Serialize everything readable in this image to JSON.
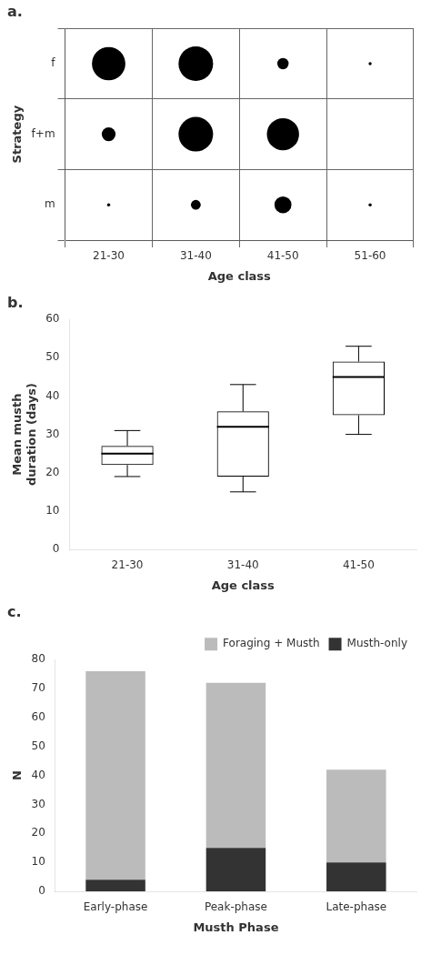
{
  "chart_data": [
    {
      "type": "bubble",
      "title": "a.",
      "xlabel": "Age class",
      "ylabel": "Strategy",
      "categories": [
        "21-30",
        "31-40",
        "41-50",
        "51-60"
      ],
      "rows": [
        "f",
        "f+m",
        "m"
      ],
      "sizes": [
        [
          700,
          750,
          80,
          6
        ],
        [
          120,
          750,
          650,
          0
        ],
        [
          6,
          60,
          180,
          6
        ]
      ],
      "color": "#000000",
      "grid": true
    },
    {
      "type": "box",
      "title": "b.",
      "xlabel": "Age class",
      "ylabel": "Mean musth\nduration (days)",
      "categories": [
        "21-30",
        "31-40",
        "41-50"
      ],
      "q1": [
        22,
        19,
        35
      ],
      "median": [
        25,
        32,
        45
      ],
      "q3": [
        27,
        36,
        49
      ],
      "whislo": [
        19,
        15,
        30
      ],
      "whishi": [
        31,
        43,
        53
      ],
      "color": "#000000",
      "ylim": [
        0,
        60
      ],
      "yticks": [
        0,
        10,
        20,
        30,
        40,
        50,
        60
      ],
      "grid": false
    },
    {
      "type": "bar",
      "title": "c.",
      "xlabel": "Musth Phase",
      "ylabel": "N",
      "categories": [
        "Early-phase",
        "Peak-phase",
        "Late-phase"
      ],
      "series": [
        {
          "name": "Musth-only",
          "color": "#333333",
          "values": [
            4,
            15,
            10
          ]
        },
        {
          "name": "Foraging +\nMusth",
          "color": "#bbbbbb",
          "values": [
            72,
            57,
            32
          ]
        }
      ],
      "stacked": true,
      "legend": "upper right",
      "ylim": [
        0,
        80
      ],
      "yticks": [
        0,
        10,
        20,
        30,
        40,
        50,
        60,
        70,
        80
      ],
      "grid": false
    }
  ]
}
